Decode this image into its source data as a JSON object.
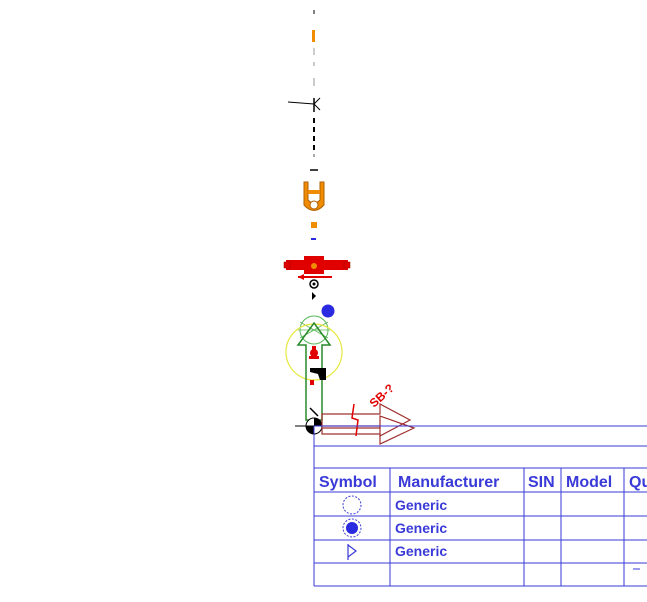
{
  "riser": {
    "tag_label": "SB-?"
  },
  "schedule": {
    "headers": [
      "Symbol",
      "Manufacturer",
      "SIN",
      "Model",
      "Qu"
    ],
    "rows": [
      {
        "symbol_icon": "open-circle-icon",
        "manufacturer": "Generic"
      },
      {
        "symbol_icon": "filled-circle-icon",
        "manufacturer": "Generic"
      },
      {
        "symbol_icon": "triangle-flag-icon",
        "manufacturer": "Generic"
      }
    ]
  },
  "colors": {
    "table_blue": "#3a3ad8",
    "pipe_black": "#000000",
    "fitting_orange": "#f08c00",
    "valve_red": "#e00000",
    "sprinkler_blue": "#2a2ae0",
    "arrow_green": "#2a8a2a",
    "halo_yellow": "#e8e840",
    "arrow_darkred": "#a03030"
  }
}
